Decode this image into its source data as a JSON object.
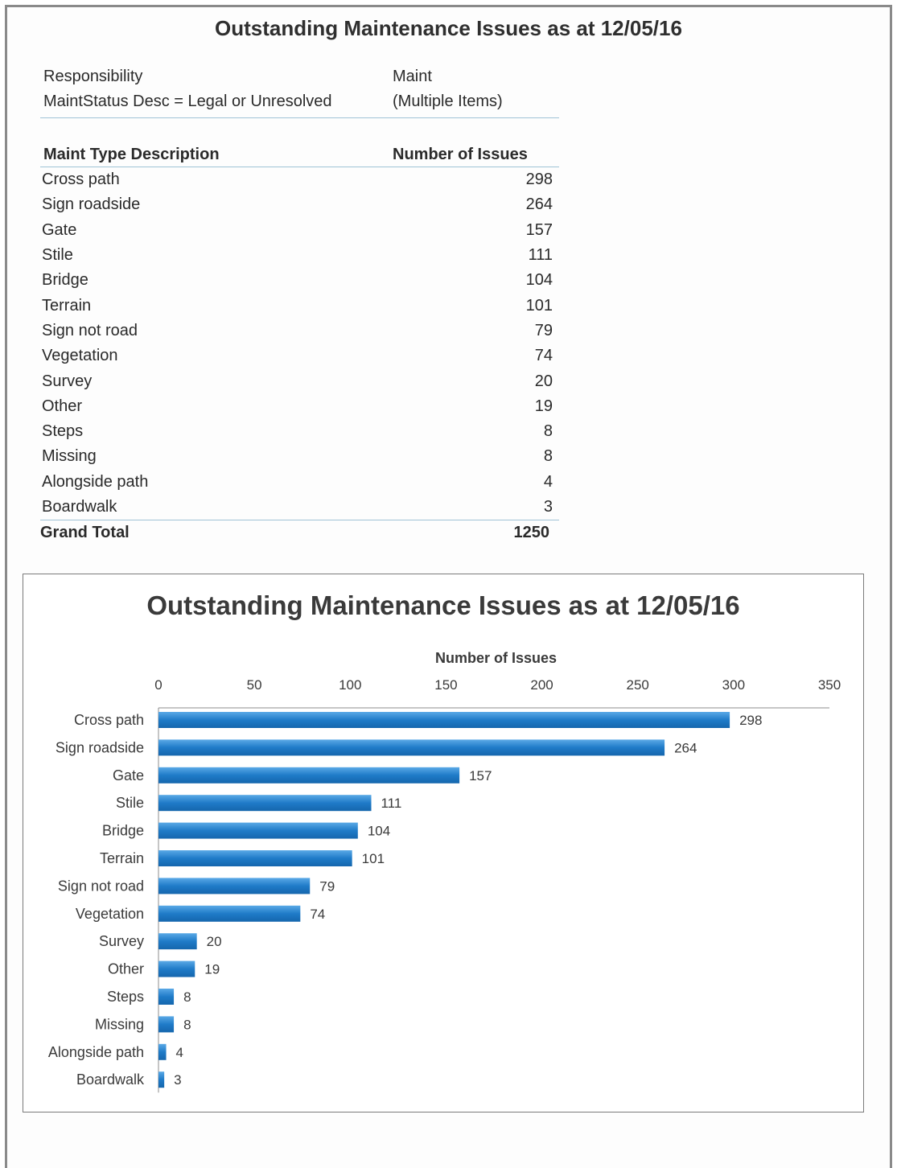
{
  "document": {
    "title": "Outstanding Maintenance Issues as at 12/05/16"
  },
  "pivot": {
    "filters": [
      {
        "field": "Responsibility",
        "value": "Maint"
      },
      {
        "field": "MaintStatus Desc = Legal or Unresolved",
        "value": "(Multiple Items)"
      }
    ],
    "header": {
      "col1": "Maint Type Description",
      "col2": "Number of Issues"
    },
    "rows": [
      {
        "name": "Cross path",
        "count": "298"
      },
      {
        "name": "Sign roadside",
        "count": "264"
      },
      {
        "name": "Gate",
        "count": "157"
      },
      {
        "name": "Stile",
        "count": "111"
      },
      {
        "name": "Bridge",
        "count": "104"
      },
      {
        "name": "Terrain",
        "count": "101"
      },
      {
        "name": "Sign not road",
        "count": "79"
      },
      {
        "name": "Vegetation",
        "count": "74"
      },
      {
        "name": "Survey",
        "count": "20"
      },
      {
        "name": "Other",
        "count": "19"
      },
      {
        "name": "Steps",
        "count": "8"
      },
      {
        "name": "Missing",
        "count": "8"
      },
      {
        "name": "Alongside path",
        "count": "4"
      },
      {
        "name": "Boardwalk",
        "count": "3"
      }
    ],
    "total": {
      "label": "Grand Total",
      "value": "1250"
    }
  },
  "chart_data": {
    "type": "bar",
    "orientation": "horizontal",
    "title": "Outstanding Maintenance Issues as at 12/05/16",
    "xlabel": "Number of Issues",
    "ylabel": "",
    "xlim": [
      0,
      350
    ],
    "xticks": [
      0,
      50,
      100,
      150,
      200,
      250,
      300,
      350
    ],
    "x_axis_position": "top",
    "grid": false,
    "legend": "none",
    "bar_color": "#1f7bc8",
    "categories": [
      "Cross path",
      "Sign roadside",
      "Gate",
      "Stile",
      "Bridge",
      "Terrain",
      "Sign not road",
      "Vegetation",
      "Survey",
      "Other",
      "Steps",
      "Missing",
      "Alongside path",
      "Boardwalk"
    ],
    "values": [
      298,
      264,
      157,
      111,
      104,
      101,
      79,
      74,
      20,
      19,
      8,
      8,
      4,
      3
    ],
    "data_labels": true
  }
}
